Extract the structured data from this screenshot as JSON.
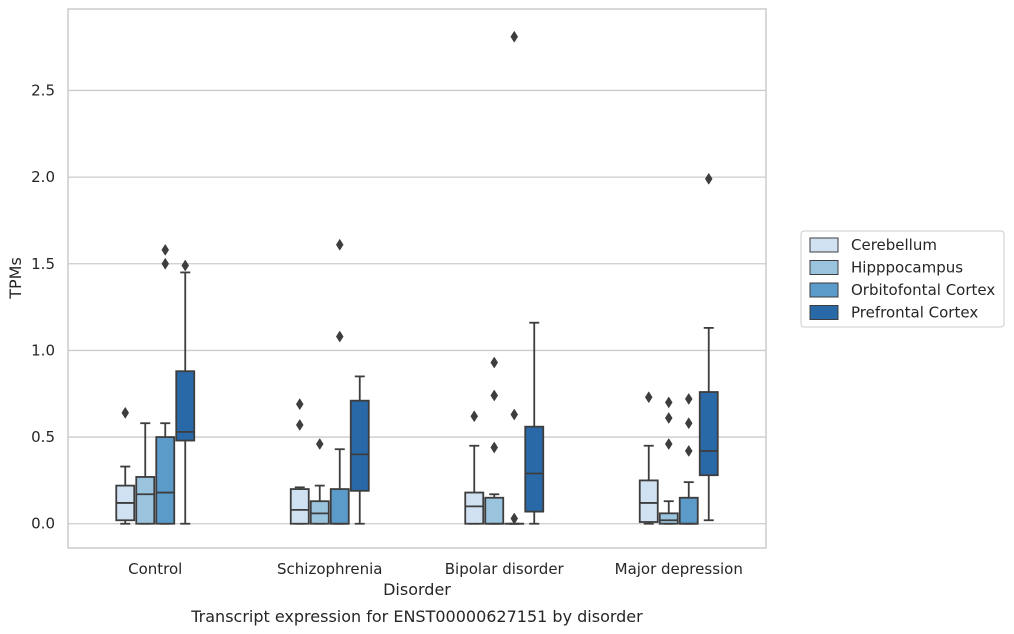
{
  "caption": "Transcript expression for ENST00000627151 by disorder",
  "chart_data": {
    "type": "box",
    "xlabel": "Disorder",
    "ylabel": "TPMs",
    "ylim": [
      -0.14,
      2.97
    ],
    "yticks": [
      0.0,
      0.5,
      1.0,
      1.5,
      2.0,
      2.5
    ],
    "ytick_labels": [
      "0.0",
      "0.5",
      "1.0",
      "1.5",
      "2.0",
      "2.5"
    ],
    "grid": "horizontal",
    "legend_position": "right",
    "categories": [
      "Control",
      "Schizophrenia",
      "Bipolar disorder",
      "Major depression"
    ],
    "series": [
      {
        "name": "Cerebellum",
        "color": "#d0e1f2",
        "boxes": [
          {
            "whisker_low": 0.0,
            "q1": 0.02,
            "median": 0.12,
            "q3": 0.22,
            "whisker_high": 0.33,
            "outliers": [
              0.64
            ]
          },
          {
            "whisker_low": 0.0,
            "q1": 0.0,
            "median": 0.08,
            "q3": 0.2,
            "whisker_high": 0.21,
            "outliers": [
              0.57,
              0.69
            ]
          },
          {
            "whisker_low": 0.0,
            "q1": 0.0,
            "median": 0.1,
            "q3": 0.18,
            "whisker_high": 0.45,
            "outliers": [
              0.62
            ]
          },
          {
            "whisker_low": 0.0,
            "q1": 0.01,
            "median": 0.12,
            "q3": 0.25,
            "whisker_high": 0.45,
            "outliers": [
              0.73
            ]
          }
        ]
      },
      {
        "name": "Hipppocampus",
        "color": "#9ac3de",
        "boxes": [
          {
            "whisker_low": 0.0,
            "q1": 0.0,
            "median": 0.17,
            "q3": 0.27,
            "whisker_high": 0.58,
            "outliers": []
          },
          {
            "whisker_low": 0.0,
            "q1": 0.0,
            "median": 0.06,
            "q3": 0.13,
            "whisker_high": 0.22,
            "outliers": [
              0.46
            ]
          },
          {
            "whisker_low": 0.0,
            "q1": 0.0,
            "median": 0.0,
            "q3": 0.15,
            "whisker_high": 0.17,
            "outliers": [
              0.44,
              0.74,
              0.93
            ]
          },
          {
            "whisker_low": 0.0,
            "q1": 0.0,
            "median": 0.02,
            "q3": 0.06,
            "whisker_high": 0.13,
            "outliers": [
              0.46,
              0.61,
              0.7
            ]
          }
        ]
      },
      {
        "name": "Orbitofontal Cortex",
        "color": "#5a9bc9",
        "boxes": [
          {
            "whisker_low": 0.0,
            "q1": 0.0,
            "median": 0.18,
            "q3": 0.5,
            "whisker_high": 0.58,
            "outliers": [
              1.5,
              1.58
            ]
          },
          {
            "whisker_low": 0.0,
            "q1": 0.0,
            "median": 0.0,
            "q3": 0.2,
            "whisker_high": 0.43,
            "outliers": [
              1.08,
              1.61
            ]
          },
          {
            "whisker_low": 0.0,
            "q1": 0.0,
            "median": 0.0,
            "q3": 0.0,
            "whisker_high": 0.0,
            "outliers": [
              0.03,
              0.63,
              2.81
            ]
          },
          {
            "whisker_low": 0.0,
            "q1": 0.0,
            "median": 0.0,
            "q3": 0.15,
            "whisker_high": 0.24,
            "outliers": [
              0.42,
              0.58,
              0.72
            ]
          }
        ]
      },
      {
        "name": "Prefrontal Cortex",
        "color": "#2a69a8",
        "boxes": [
          {
            "whisker_low": 0.0,
            "q1": 0.48,
            "median": 0.53,
            "q3": 0.88,
            "whisker_high": 1.45,
            "outliers": [
              1.49
            ]
          },
          {
            "whisker_low": 0.0,
            "q1": 0.19,
            "median": 0.4,
            "q3": 0.71,
            "whisker_high": 0.85,
            "outliers": []
          },
          {
            "whisker_low": 0.0,
            "q1": 0.07,
            "median": 0.29,
            "q3": 0.56,
            "whisker_high": 1.16,
            "outliers": []
          },
          {
            "whisker_low": 0.02,
            "q1": 0.28,
            "median": 0.42,
            "q3": 0.76,
            "whisker_high": 1.13,
            "outliers": [
              1.99
            ]
          }
        ]
      }
    ]
  }
}
